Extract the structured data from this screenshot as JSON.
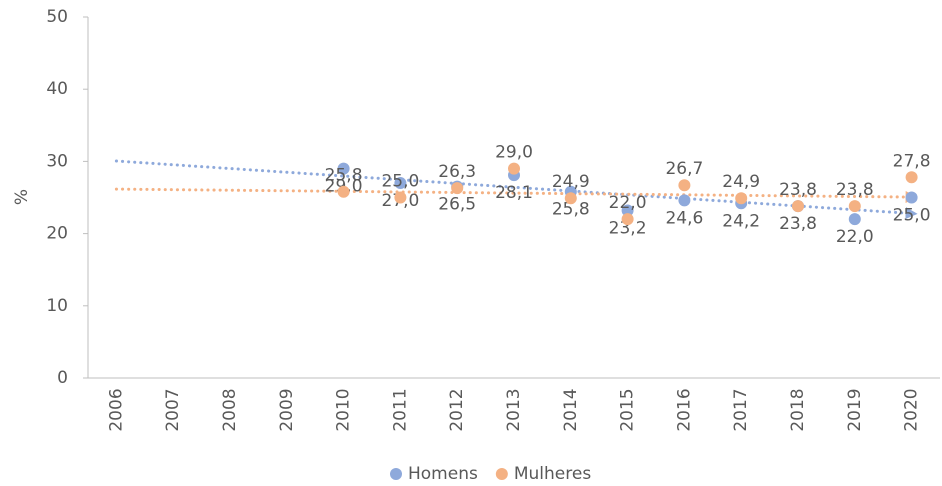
{
  "chart_data": {
    "type": "scatter",
    "y_label": "%",
    "categories": [
      "2006",
      "2007",
      "2008",
      "2009",
      "2010",
      "2011",
      "2012",
      "2013",
      "2014",
      "2015",
      "2016",
      "2017",
      "2018",
      "2019",
      "2020"
    ],
    "series": [
      {
        "name": "Homens",
        "color": "#8ea9db",
        "values": [
          null,
          null,
          null,
          null,
          29.0,
          27.0,
          26.5,
          28.1,
          25.8,
          23.2,
          24.6,
          24.2,
          23.8,
          22.0,
          25.0
        ],
        "value_labels": [
          null,
          null,
          null,
          null,
          "29,0",
          "27,0",
          "26,5",
          "28,1",
          "25,8",
          "23,2",
          "24,6",
          "24,2",
          "23,8",
          "22,0",
          "25,0"
        ],
        "label_position": "below"
      },
      {
        "name": "Mulheres",
        "color": "#f4b183",
        "values": [
          null,
          null,
          null,
          null,
          25.8,
          25.0,
          26.3,
          29.0,
          24.9,
          22.0,
          26.7,
          24.9,
          23.8,
          23.8,
          27.8
        ],
        "value_labels": [
          null,
          null,
          null,
          null,
          "25,8",
          "25,0",
          "26,3",
          "29,0",
          "24,9",
          "22,0",
          "26,7",
          "24,9",
          "23,8",
          "23,8",
          "27,8"
        ],
        "label_position": "above"
      }
    ],
    "trendline": true,
    "ylim": [
      0,
      50
    ],
    "yticks": [
      0,
      10,
      20,
      30,
      40,
      50
    ],
    "grid": false,
    "legend": "bottom"
  }
}
